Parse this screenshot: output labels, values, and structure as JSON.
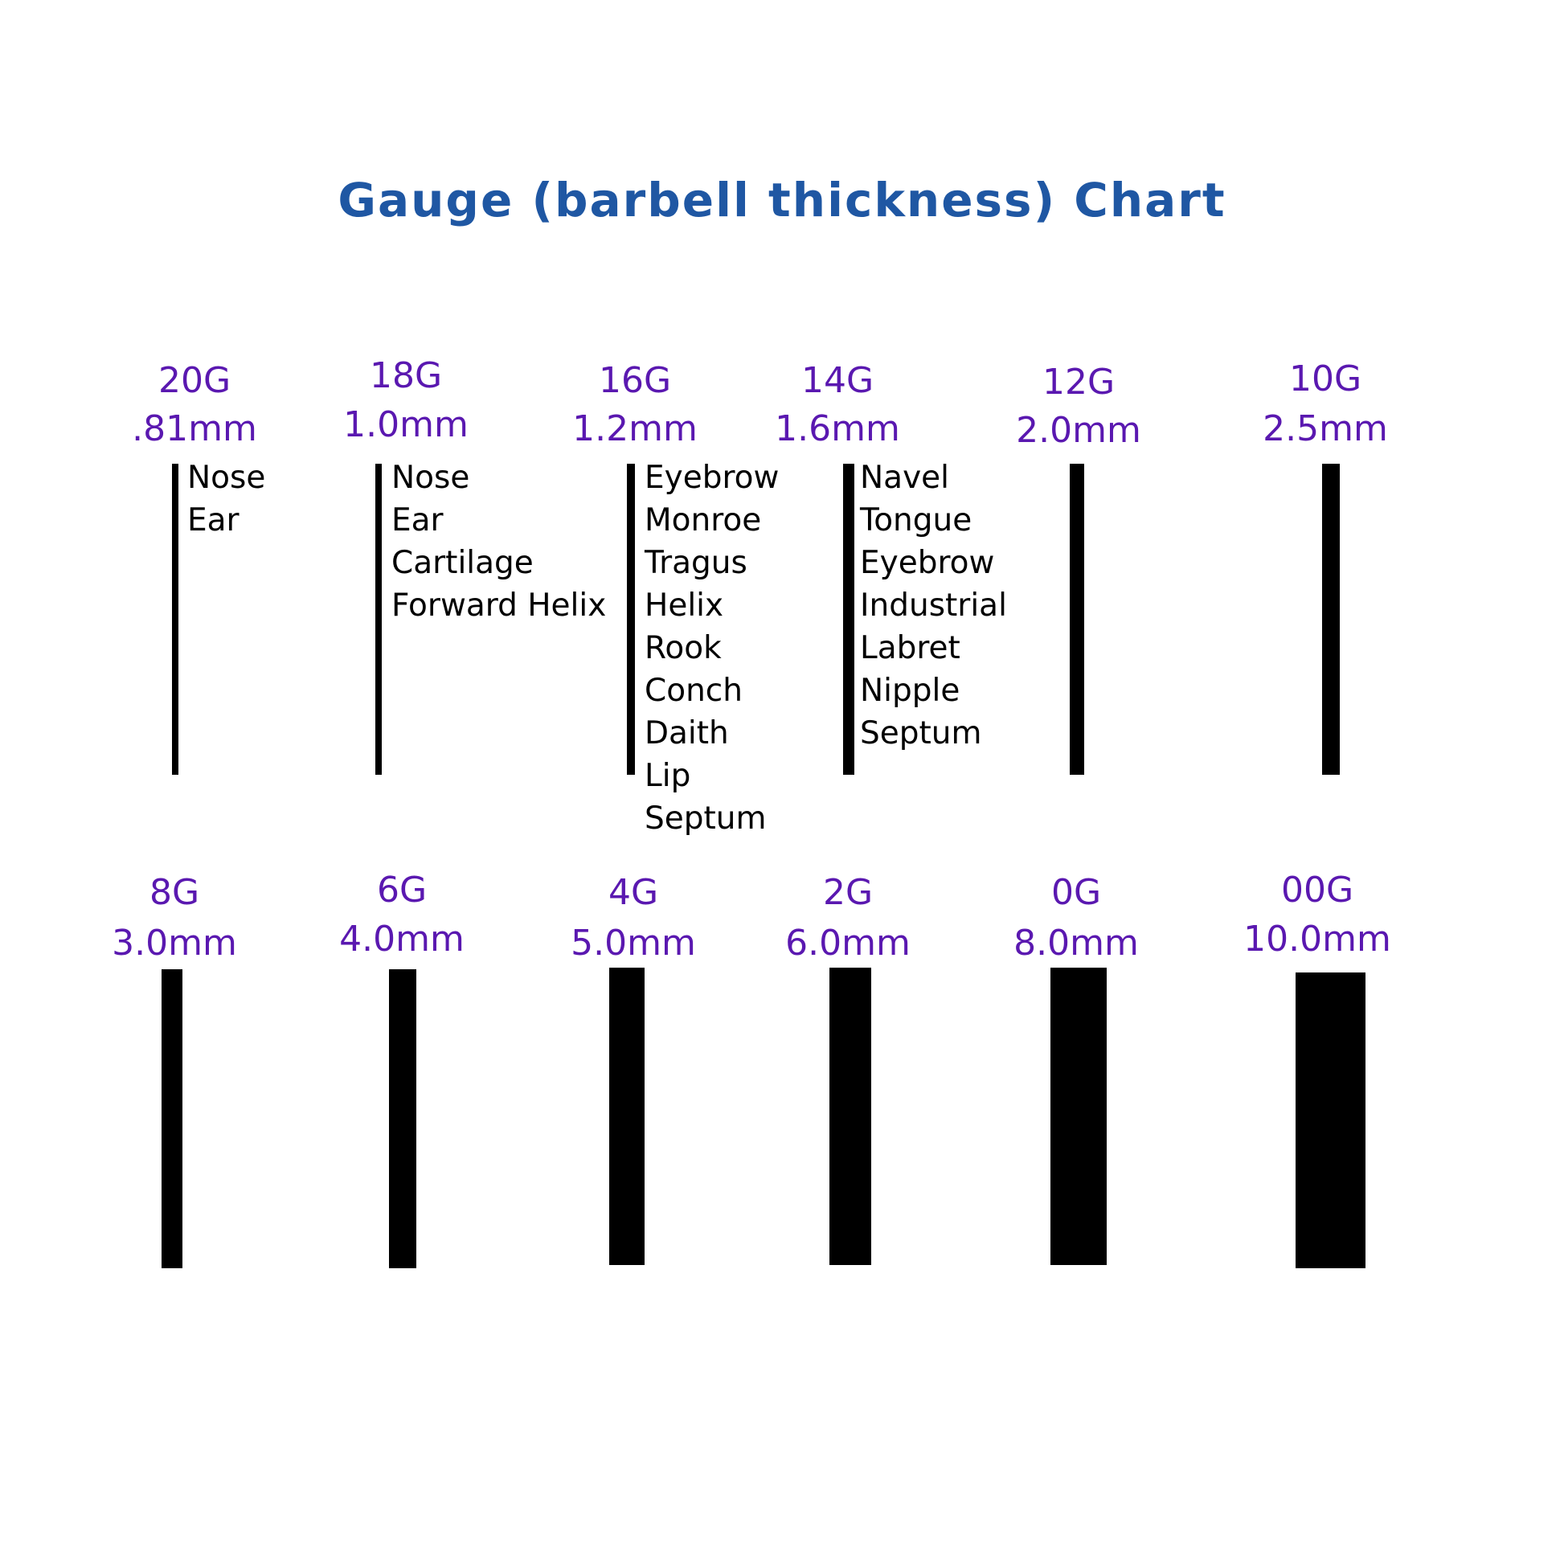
{
  "title": "Gauge (barbell thickness) Chart",
  "colors": {
    "title": "#1f57a3",
    "gauge_label": "#5a18b0",
    "bar": "#000000"
  },
  "chart_data": {
    "type": "bar",
    "title": "Gauge (barbell thickness) Chart",
    "unit": "mm",
    "gauges": [
      {
        "gauge": "20G",
        "size": ".81mm",
        "mm": 0.81,
        "uses": [
          "Nose",
          "Ear"
        ]
      },
      {
        "gauge": "18G",
        "size": "1.0mm",
        "mm": 1.0,
        "uses": [
          "Nose",
          "Ear",
          "Cartilage",
          "Forward Helix"
        ]
      },
      {
        "gauge": "16G",
        "size": "1.2mm",
        "mm": 1.2,
        "uses": [
          "Eyebrow",
          "Monroe",
          "Tragus",
          "Helix",
          "Rook",
          "Conch",
          "Daith",
          "Lip",
          "Septum"
        ]
      },
      {
        "gauge": "14G",
        "size": "1.6mm",
        "mm": 1.6,
        "uses": [
          "Navel",
          "Tongue",
          "Eyebrow",
          "Industrial",
          "Labret",
          "Nipple",
          "Septum"
        ]
      },
      {
        "gauge": "12G",
        "size": "2.0mm",
        "mm": 2.0,
        "uses": []
      },
      {
        "gauge": "10G",
        "size": "2.5mm",
        "mm": 2.5,
        "uses": []
      },
      {
        "gauge": "8G",
        "size": "3.0mm",
        "mm": 3.0,
        "uses": []
      },
      {
        "gauge": "6G",
        "size": "4.0mm",
        "mm": 4.0,
        "uses": []
      },
      {
        "gauge": "4G",
        "size": "5.0mm",
        "mm": 5.0,
        "uses": []
      },
      {
        "gauge": "2G",
        "size": "6.0mm",
        "mm": 6.0,
        "uses": []
      },
      {
        "gauge": "0G",
        "size": "8.0mm",
        "mm": 8.0,
        "uses": []
      },
      {
        "gauge": "00G",
        "size": "10.0mm",
        "mm": 10.0,
        "uses": []
      }
    ]
  }
}
